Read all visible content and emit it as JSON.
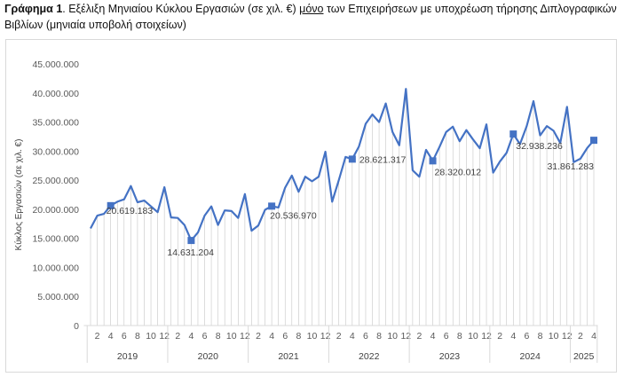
{
  "caption": {
    "prefix": "Γράφημα 1",
    "part1": ". Εξέλιξη Μηνιαίου Κύκλου Εργασιών (σε χιλ. €) ",
    "emph": "μόνο",
    "part2": " των Επιχειρήσεων με υποχρέωση τήρησης Διπλογραφικών Βιβλίων (μηνιαία υποβολή στοιχείων)"
  },
  "chart_data": {
    "type": "line",
    "ylabel": "Κύκλος Εργασιών (σε χιλ. €)",
    "ylim": [
      0,
      45000000
    ],
    "yticks": [
      "0",
      "5.000.000",
      "10.000.000",
      "15.000.000",
      "20.000.000",
      "25.000.000",
      "30.000.000",
      "35.000.000",
      "40.000.000",
      "45.000.000"
    ],
    "grid": false,
    "series_color": "#4472c4",
    "x_month_ticks": [
      "2",
      "4",
      "6",
      "8",
      "10",
      "12"
    ],
    "last_year_ticks": [
      "2",
      "4"
    ],
    "years": [
      "2019",
      "2020",
      "2021",
      "2022",
      "2023",
      "2024",
      "2025"
    ],
    "values": [
      16700000,
      18900000,
      19200000,
      20619183,
      21300000,
      21700000,
      24000000,
      21200000,
      21500000,
      20500000,
      19500000,
      23800000,
      18600000,
      18500000,
      17300000,
      14631204,
      16000000,
      18900000,
      20500000,
      17300000,
      19800000,
      19700000,
      18500000,
      22600000,
      16300000,
      17200000,
      19900000,
      20536970,
      20300000,
      23700000,
      25800000,
      23000000,
      25600000,
      24800000,
      25600000,
      29900000,
      21300000,
      25000000,
      29000000,
      28621317,
      30800000,
      34700000,
      36300000,
      35000000,
      38200000,
      33300000,
      31000000,
      40700000,
      26700000,
      25600000,
      30200000,
      28320012,
      30700000,
      33300000,
      34200000,
      31700000,
      33600000,
      32000000,
      30500000,
      34600000,
      26300000,
      28200000,
      29700000,
      32938236,
      31200000,
      34300000,
      38600000,
      32700000,
      34300000,
      33500000,
      31400000,
      37600000,
      28100000,
      28700000,
      30500000,
      31861283
    ],
    "labeled_points": [
      {
        "index": 3,
        "label": "20.619.183"
      },
      {
        "index": 15,
        "label": "14.631.204"
      },
      {
        "index": 27,
        "label": "20.536.970"
      },
      {
        "index": 39,
        "label": "28.621.317"
      },
      {
        "index": 51,
        "label": "28.320.012"
      },
      {
        "index": 63,
        "label": "32.938.236"
      },
      {
        "index": 75,
        "label": "31.861.283"
      }
    ]
  }
}
